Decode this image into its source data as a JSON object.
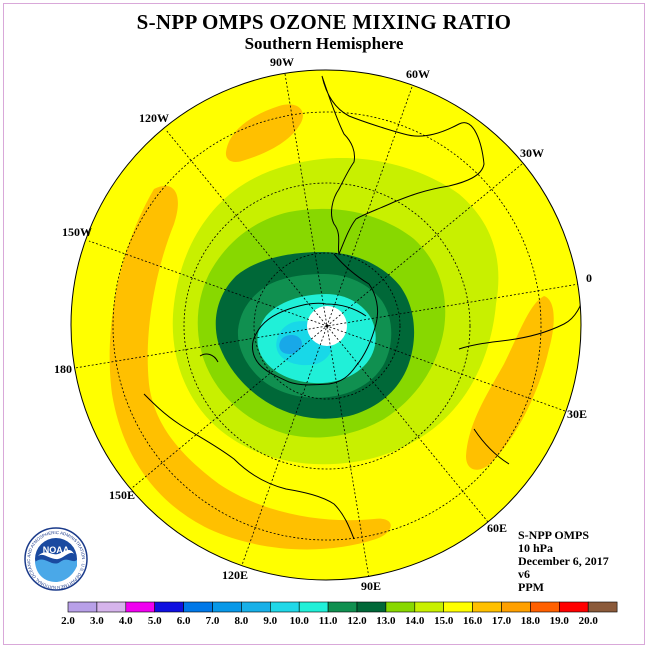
{
  "title": "S-NPP OMPS OZONE MIXING RATIO",
  "subtitle": "Southern Hemisphere",
  "longitude_labels": [
    "90W",
    "60W",
    "30W",
    "0",
    "30E",
    "60E",
    "90E",
    "120E",
    "150E",
    "180",
    "150W",
    "120W"
  ],
  "info": {
    "instrument": "S-NPP OMPS",
    "level": "10 hPa",
    "date": "December 6, 2017",
    "version": "v6",
    "units": "PPM"
  },
  "logo": {
    "text": "NOAA",
    "ring_text": "NATIONAL OCEANIC AND ATMOSPHERIC ADMINISTRATION · U.S. DEPARTMENT OF COMMERCE"
  },
  "colorbar": {
    "ticks": [
      "2.0",
      "3.0",
      "4.0",
      "5.0",
      "6.0",
      "7.0",
      "8.0",
      "9.0",
      "10.0",
      "11.0",
      "12.0",
      "13.0",
      "14.0",
      "15.0",
      "16.0",
      "17.0",
      "18.0",
      "19.0",
      "20.0"
    ],
    "colors": [
      "#b8a0e8",
      "#d6b4ec",
      "#f000f0",
      "#1010e0",
      "#0078e8",
      "#0898e8",
      "#18b0e8",
      "#20d8e8",
      "#20f0d8",
      "#109050",
      "#006838",
      "#88d800",
      "#c8f000",
      "#ffff00",
      "#ffc000",
      "#ffa000",
      "#ff6000",
      "#ff0000",
      "#8b5a3a"
    ]
  }
}
